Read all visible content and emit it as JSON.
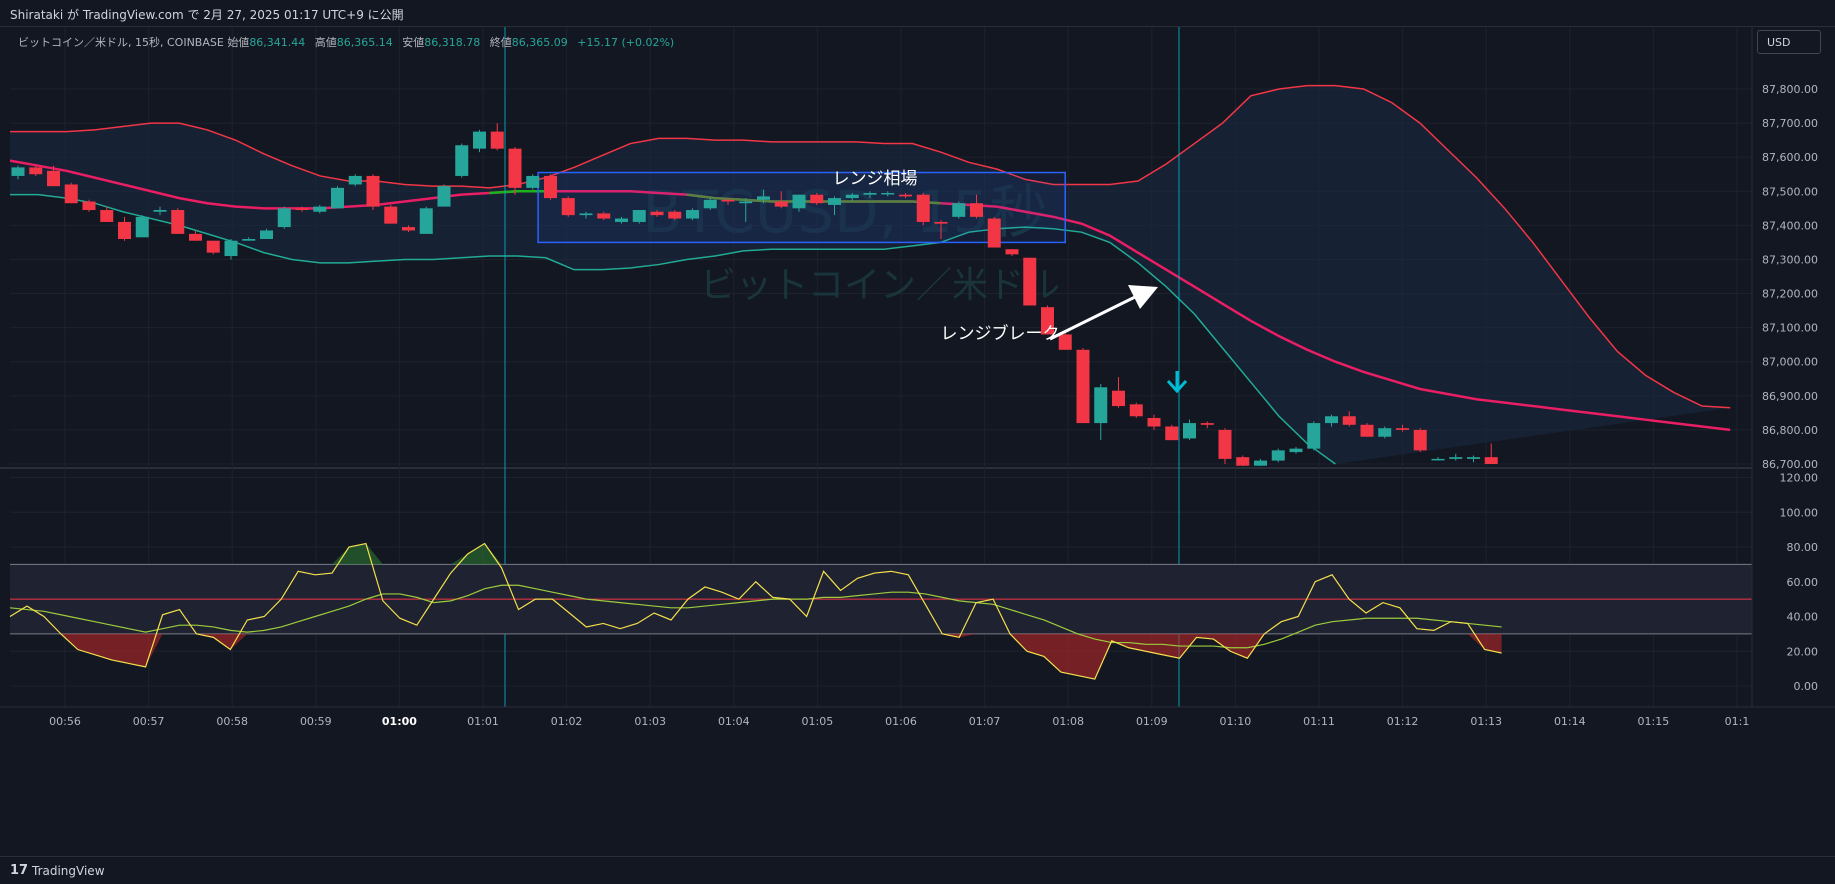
{
  "header": {
    "publish_line": "Shirataki が TradingView.com で 2月 27, 2025 01:17 UTC+9 に公開"
  },
  "legend": {
    "symbol": "ビットコイン／米ドル, 15秒, COINBASE",
    "open_label": "始値",
    "open": "86,341.44",
    "high_label": "高値",
    "high": "86,365.14",
    "low_label": "安値",
    "low": "86,318.78",
    "close_label": "終値",
    "close": "86,365.09",
    "change": "+15.17 (+0.02%)"
  },
  "currency": "USD",
  "watermark": {
    "line1": "BTCUSD, 15秒",
    "line2": "ビットコイン／米ドル"
  },
  "annotations": {
    "range": "レンジ相場",
    "breakout": "レンジブレーク"
  },
  "footer": {
    "brand": "TradingView",
    "logo": "17"
  },
  "colors": {
    "background": "#131722",
    "up": "#26a69a",
    "down": "#f23645",
    "bb_upper": "#f23645",
    "bb_lower": "#22ab94",
    "bb_basis": "#e91e63",
    "bb_basis_alt": "#1db31d",
    "rsi": "#f4e04d",
    "rsi_ma": "#9ccc3d",
    "range_box": "#2962ff",
    "crosshair": "#00bcd4"
  },
  "chart_data": [
    {
      "type": "candlestick",
      "title": "ビットコイン／米ドル, 15秒, COINBASE",
      "x": [
        "00:56",
        "00:57",
        "00:58",
        "00:59",
        "01:00",
        "01:01",
        "01:02",
        "01:03",
        "01:04",
        "01:05",
        "01:06",
        "01:07",
        "01:08",
        "01:09",
        "01:10",
        "01:11",
        "01:12",
        "01:13",
        "01:14",
        "01:15",
        "01:1"
      ],
      "ylim": [
        86700,
        87900
      ],
      "yticks": [
        "86,700.00",
        "86,800.00",
        "86,900.00",
        "87,000.00",
        "87,100.00",
        "87,200.00",
        "87,300.00",
        "87,400.00",
        "87,500.00",
        "87,600.00",
        "87,700.00",
        "87,800.00"
      ],
      "yticks_values": [
        86700,
        86800,
        86900,
        87000,
        87100,
        87200,
        87300,
        87400,
        87500,
        87600,
        87700,
        87800
      ],
      "candles": [
        {
          "o": 87545,
          "h": 87575,
          "l": 87535,
          "c": 87570
        },
        {
          "o": 87570,
          "h": 87575,
          "l": 87545,
          "c": 87550
        },
        {
          "o": 87560,
          "h": 87575,
          "l": 87515,
          "c": 87515
        },
        {
          "o": 87520,
          "h": 87525,
          "l": 87465,
          "c": 87465
        },
        {
          "o": 87470,
          "h": 87475,
          "l": 87440,
          "c": 87445
        },
        {
          "o": 87445,
          "h": 87455,
          "l": 87410,
          "c": 87410
        },
        {
          "o": 87410,
          "h": 87425,
          "l": 87355,
          "c": 87360
        },
        {
          "o": 87365,
          "h": 87430,
          "l": 87365,
          "c": 87425
        },
        {
          "o": 87440,
          "h": 87455,
          "l": 87430,
          "c": 87445
        },
        {
          "o": 87445,
          "h": 87450,
          "l": 87375,
          "c": 87375
        },
        {
          "o": 87375,
          "h": 87385,
          "l": 87355,
          "c": 87355
        },
        {
          "o": 87355,
          "h": 87355,
          "l": 87315,
          "c": 87320
        },
        {
          "o": 87310,
          "h": 87360,
          "l": 87300,
          "c": 87355
        },
        {
          "o": 87355,
          "h": 87365,
          "l": 87355,
          "c": 87360
        },
        {
          "o": 87360,
          "h": 87390,
          "l": 87360,
          "c": 87385
        },
        {
          "o": 87395,
          "h": 87455,
          "l": 87390,
          "c": 87450
        },
        {
          "o": 87450,
          "h": 87455,
          "l": 87440,
          "c": 87445
        },
        {
          "o": 87440,
          "h": 87460,
          "l": 87435,
          "c": 87455
        },
        {
          "o": 87450,
          "h": 87515,
          "l": 87450,
          "c": 87510
        },
        {
          "o": 87520,
          "h": 87550,
          "l": 87515,
          "c": 87545
        },
        {
          "o": 87545,
          "h": 87550,
          "l": 87445,
          "c": 87455
        },
        {
          "o": 87455,
          "h": 87460,
          "l": 87405,
          "c": 87405
        },
        {
          "o": 87395,
          "h": 87400,
          "l": 87380,
          "c": 87385
        },
        {
          "o": 87375,
          "h": 87455,
          "l": 87375,
          "c": 87450
        },
        {
          "o": 87455,
          "h": 87520,
          "l": 87455,
          "c": 87515
        },
        {
          "o": 87545,
          "h": 87640,
          "l": 87540,
          "c": 87635
        },
        {
          "o": 87625,
          "h": 87680,
          "l": 87615,
          "c": 87675
        },
        {
          "o": 87675,
          "h": 87700,
          "l": 87620,
          "c": 87625
        },
        {
          "o": 87625,
          "h": 87630,
          "l": 87490,
          "c": 87510
        },
        {
          "o": 87510,
          "h": 87550,
          "l": 87505,
          "c": 87545
        },
        {
          "o": 87545,
          "h": 87550,
          "l": 87475,
          "c": 87480
        },
        {
          "o": 87480,
          "h": 87485,
          "l": 87425,
          "c": 87430
        },
        {
          "o": 87430,
          "h": 87440,
          "l": 87420,
          "c": 87435
        },
        {
          "o": 87435,
          "h": 87440,
          "l": 87415,
          "c": 87420
        },
        {
          "o": 87410,
          "h": 87425,
          "l": 87405,
          "c": 87420
        },
        {
          "o": 87410,
          "h": 87445,
          "l": 87405,
          "c": 87445
        },
        {
          "o": 87440,
          "h": 87445,
          "l": 87425,
          "c": 87430
        },
        {
          "o": 87440,
          "h": 87445,
          "l": 87415,
          "c": 87420
        },
        {
          "o": 87420,
          "h": 87450,
          "l": 87415,
          "c": 87445
        },
        {
          "o": 87450,
          "h": 87480,
          "l": 87445,
          "c": 87475
        },
        {
          "o": 87475,
          "h": 87480,
          "l": 87460,
          "c": 87470
        },
        {
          "o": 87465,
          "h": 87480,
          "l": 87410,
          "c": 87470
        },
        {
          "o": 87475,
          "h": 87505,
          "l": 87465,
          "c": 87485
        },
        {
          "o": 87470,
          "h": 87500,
          "l": 87450,
          "c": 87455
        },
        {
          "o": 87450,
          "h": 87490,
          "l": 87440,
          "c": 87490
        },
        {
          "o": 87490,
          "h": 87495,
          "l": 87460,
          "c": 87465
        },
        {
          "o": 87460,
          "h": 87485,
          "l": 87430,
          "c": 87480
        },
        {
          "o": 87480,
          "h": 87495,
          "l": 87470,
          "c": 87490
        },
        {
          "o": 87490,
          "h": 87500,
          "l": 87480,
          "c": 87495
        },
        {
          "o": 87495,
          "h": 87500,
          "l": 87485,
          "c": 87495
        },
        {
          "o": 87490,
          "h": 87495,
          "l": 87480,
          "c": 87485
        },
        {
          "o": 87490,
          "h": 87495,
          "l": 87400,
          "c": 87410
        },
        {
          "o": 87410,
          "h": 87415,
          "l": 87360,
          "c": 87405
        },
        {
          "o": 87425,
          "h": 87470,
          "l": 87420,
          "c": 87465
        },
        {
          "o": 87465,
          "h": 87490,
          "l": 87420,
          "c": 87425
        },
        {
          "o": 87420,
          "h": 87425,
          "l": 87335,
          "c": 87335
        },
        {
          "o": 87330,
          "h": 87330,
          "l": 87310,
          "c": 87315
        },
        {
          "o": 87305,
          "h": 87305,
          "l": 87165,
          "c": 87165
        },
        {
          "o": 87160,
          "h": 87165,
          "l": 87080,
          "c": 87080
        },
        {
          "o": 87080,
          "h": 87085,
          "l": 87035,
          "c": 87035
        },
        {
          "o": 87035,
          "h": 87040,
          "l": 86820,
          "c": 86820
        },
        {
          "o": 86820,
          "h": 86935,
          "l": 86770,
          "c": 86925
        },
        {
          "o": 86915,
          "h": 86955,
          "l": 86865,
          "c": 86870
        },
        {
          "o": 86875,
          "h": 86880,
          "l": 86835,
          "c": 86840
        },
        {
          "o": 86835,
          "h": 86845,
          "l": 86800,
          "c": 86810
        },
        {
          "o": 86810,
          "h": 86815,
          "l": 86770,
          "c": 86770
        },
        {
          "o": 86775,
          "h": 86830,
          "l": 86770,
          "c": 86820
        },
        {
          "o": 86820,
          "h": 86825,
          "l": 86805,
          "c": 86815
        },
        {
          "o": 86800,
          "h": 86805,
          "l": 86700,
          "c": 86715
        },
        {
          "o": 86720,
          "h": 86725,
          "l": 86690,
          "c": 86695
        },
        {
          "o": 86695,
          "h": 86715,
          "l": 86690,
          "c": 86710
        },
        {
          "o": 86710,
          "h": 86745,
          "l": 86705,
          "c": 86740
        },
        {
          "o": 86735,
          "h": 86750,
          "l": 86730,
          "c": 86745
        },
        {
          "o": 86745,
          "h": 86825,
          "l": 86740,
          "c": 86820
        },
        {
          "o": 86820,
          "h": 86845,
          "l": 86810,
          "c": 86840
        },
        {
          "o": 86840,
          "h": 86855,
          "l": 86810,
          "c": 86815
        },
        {
          "o": 86815,
          "h": 86820,
          "l": 86780,
          "c": 86780
        },
        {
          "o": 86780,
          "h": 86810,
          "l": 86775,
          "c": 86805
        },
        {
          "o": 86805,
          "h": 86815,
          "l": 86795,
          "c": 86800
        },
        {
          "o": 86800,
          "h": 86805,
          "l": 86735,
          "c": 86740
        },
        {
          "o": 86715,
          "h": 86720,
          "l": 86710,
          "c": 86715
        },
        {
          "o": 86715,
          "h": 86730,
          "l": 86710,
          "c": 86720
        },
        {
          "o": 86715,
          "h": 86725,
          "l": 86705,
          "c": 86720
        },
        {
          "o": 86720,
          "h": 86760,
          "l": 86700,
          "c": 86700
        }
      ],
      "bb_upper": [
        87675,
        87675,
        87675,
        87680,
        87690,
        87700,
        87700,
        87680,
        87650,
        87610,
        87575,
        87545,
        87530,
        87530,
        87520,
        87515,
        87515,
        87510,
        87520,
        87540,
        87570,
        87605,
        87640,
        87655,
        87655,
        87650,
        87650,
        87645,
        87645,
        87645,
        87645,
        87640,
        87640,
        87615,
        87585,
        87565,
        87535,
        87520,
        87520,
        87520,
        87530,
        87580,
        87640,
        87700,
        87780,
        87800,
        87810,
        87810,
        87800,
        87760,
        87700,
        87620,
        87540,
        87450,
        87350,
        87240,
        87130,
        87030,
        86960,
        86910,
        86870,
        86865
      ],
      "bb_basis": [
        87590,
        87575,
        87560,
        87540,
        87520,
        87500,
        87480,
        87465,
        87455,
        87450,
        87450,
        87450,
        87455,
        87460,
        87470,
        87480,
        87490,
        87495,
        87500,
        87500,
        87500,
        87500,
        87500,
        87495,
        87490,
        87480,
        87475,
        87470,
        87470,
        87470,
        87470,
        87470,
        87470,
        87465,
        87460,
        87455,
        87440,
        87425,
        87405,
        87370,
        87320,
        87270,
        87220,
        87170,
        87120,
        87075,
        87035,
        87000,
        86970,
        86945,
        86920,
        86905,
        86890,
        86880,
        86870,
        86860,
        86850,
        86840,
        86830,
        86820,
        86810,
        86800
      ],
      "bb_lower": [
        87490,
        87490,
        87480,
        87465,
        87440,
        87420,
        87400,
        87375,
        87350,
        87320,
        87300,
        87290,
        87290,
        87295,
        87300,
        87300,
        87305,
        87310,
        87310,
        87305,
        87270,
        87270,
        87275,
        87285,
        87300,
        87310,
        87325,
        87330,
        87330,
        87330,
        87330,
        87330,
        87340,
        87350,
        87380,
        87390,
        87395,
        87390,
        87380,
        87350,
        87290,
        87220,
        87140,
        87040,
        86940,
        86840,
        86760,
        86700
      ],
      "range_box": {
        "x_start_index": 29.3,
        "x_end_index": 59.0,
        "y_top": 87555,
        "y_bottom": 87350
      },
      "range_label": "レンジ相場",
      "breakout_label": "レンジブレーク"
    },
    {
      "type": "line",
      "title": "RSI",
      "ylim": [
        0,
        120
      ],
      "yticks": [
        "0.00",
        "20.00",
        "40.00",
        "60.00",
        "80.00",
        "100.00",
        "120.00"
      ],
      "yticks_values": [
        0,
        20,
        40,
        60,
        80,
        100,
        120
      ],
      "levels": [
        70,
        50,
        30
      ],
      "series": [
        {
          "values": [
            40,
            46,
            40,
            30,
            21,
            18,
            15,
            13,
            11,
            41,
            44,
            30,
            28,
            21,
            38,
            40,
            50,
            66,
            64,
            65,
            80,
            82,
            49,
            39,
            35,
            50,
            65,
            76,
            82,
            68,
            44,
            50,
            50,
            42,
            34,
            36,
            33,
            36,
            42,
            38,
            50,
            57,
            54,
            50,
            60,
            51,
            50,
            40,
            66,
            55,
            62,
            65,
            66,
            64,
            47,
            30,
            28,
            48,
            50,
            30,
            20,
            17,
            8,
            6,
            4,
            26,
            22,
            20,
            18,
            16,
            28,
            27,
            20,
            16,
            30,
            37,
            40,
            60,
            64,
            50,
            42,
            48,
            45,
            33,
            32,
            37,
            36,
            21,
            19
          ]
        },
        {
          "values": [
            45,
            44,
            43,
            41,
            39,
            37,
            35,
            33,
            31,
            33,
            35,
            35,
            34,
            32,
            31,
            32,
            34,
            37,
            40,
            43,
            46,
            50,
            53,
            53,
            51,
            48,
            49,
            52,
            56,
            58,
            58,
            56,
            54,
            52,
            50,
            49,
            48,
            47,
            46,
            45,
            45,
            46,
            47,
            48,
            49,
            50,
            50,
            50,
            51,
            51,
            52,
            53,
            54,
            54,
            53,
            51,
            49,
            48,
            47,
            44,
            41,
            38,
            34,
            30,
            27,
            25,
            25,
            24,
            24,
            23,
            23,
            23,
            22,
            22,
            24,
            27,
            31,
            35,
            37,
            38,
            39,
            39,
            39,
            39,
            38,
            37,
            36,
            35,
            34
          ]
        }
      ]
    }
  ]
}
